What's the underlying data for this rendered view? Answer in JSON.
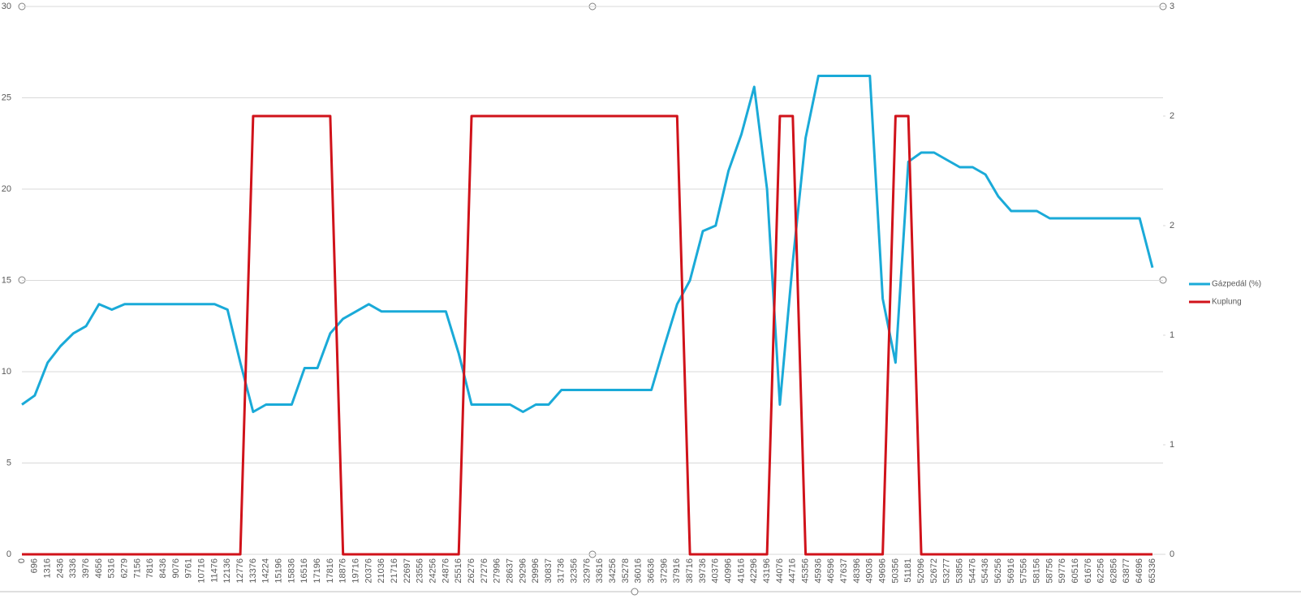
{
  "chart_data": {
    "type": "line",
    "categories": [
      "0",
      "696",
      "1316",
      "2436",
      "3336",
      "3976",
      "4656",
      "5316",
      "6279",
      "7156",
      "7816",
      "8436",
      "9076",
      "9761",
      "10716",
      "11476",
      "12136",
      "12776",
      "13376",
      "14224",
      "15196",
      "15836",
      "16516",
      "17196",
      "17816",
      "18876",
      "19716",
      "20376",
      "21036",
      "21716",
      "22697",
      "23556",
      "24256",
      "24876",
      "25516",
      "26276",
      "27276",
      "27996",
      "28637",
      "29296",
      "29996",
      "30837",
      "31736",
      "32356",
      "32976",
      "33616",
      "34256",
      "35278",
      "36016",
      "36636",
      "37296",
      "37916",
      "38716",
      "39736",
      "40376",
      "40996",
      "41616",
      "42296",
      "43196",
      "44076",
      "44716",
      "45356",
      "45936",
      "46596",
      "47637",
      "48396",
      "49036",
      "49696",
      "50356",
      "51181",
      "52096",
      "52672",
      "53277",
      "53856",
      "54476",
      "55436",
      "56256",
      "56916",
      "57556",
      "58156",
      "58756",
      "59776",
      "60516",
      "61676",
      "62256",
      "62856",
      "63877",
      "64696",
      "65336"
    ],
    "series": [
      {
        "name": "Gázpedál (%)",
        "color": "#1aaad8",
        "values": [
          8.2,
          8.7,
          10.5,
          11.4,
          12.1,
          12.5,
          13.7,
          13.4,
          13.7,
          13.7,
          13.7,
          13.7,
          13.7,
          13.7,
          13.7,
          13.7,
          13.4,
          10.5,
          7.8,
          8.2,
          8.2,
          8.2,
          10.2,
          10.2,
          12.1,
          12.9,
          13.3,
          13.7,
          13.3,
          13.3,
          13.3,
          13.3,
          13.3,
          13.3,
          11.0,
          8.2,
          8.2,
          8.2,
          8.2,
          7.8,
          8.2,
          8.2,
          9.0,
          9.0,
          9.0,
          9.0,
          9.0,
          9.0,
          9.0,
          9.0,
          11.4,
          13.7,
          15.0,
          17.7,
          18.0,
          21.0,
          23.0,
          25.6,
          20,
          8.2,
          16,
          22.8,
          26.2,
          26.2,
          26.2,
          26.2,
          26.2,
          14,
          10.5,
          21.5,
          22,
          22,
          21.6,
          21.2,
          21.2,
          20.8,
          19.6,
          18.8,
          18.8,
          18.8,
          18.4,
          18.4,
          18.4,
          18.4,
          18.4,
          18.4,
          18.4,
          18.4,
          15.7
        ]
      },
      {
        "name": "Kuplung",
        "color": "#d0121a",
        "axis": "y2",
        "values": [
          0,
          0,
          0,
          0,
          0,
          0,
          0,
          0,
          0,
          0,
          0,
          0,
          0,
          0,
          0,
          0,
          0,
          0,
          2.4,
          2.4,
          2.4,
          2.4,
          2.4,
          2.4,
          2.4,
          0,
          0,
          0,
          0,
          0,
          0,
          0,
          0,
          0,
          0,
          2.4,
          2.4,
          2.4,
          2.4,
          2.4,
          2.4,
          2.4,
          2.4,
          2.4,
          2.4,
          2.4,
          2.4,
          2.4,
          2.4,
          2.4,
          2.4,
          2.4,
          0,
          0,
          0,
          0,
          0,
          0,
          0,
          2.4,
          2.4,
          0,
          0,
          0,
          0,
          0,
          0,
          0,
          2.4,
          2.4,
          0,
          0,
          0,
          0,
          0,
          0,
          0,
          0,
          0,
          0,
          0,
          0,
          0,
          0,
          0,
          0,
          0,
          0,
          0
        ]
      }
    ],
    "ylim": [
      0,
      30
    ],
    "yticks": [
      0,
      5,
      10,
      15,
      20,
      25,
      30
    ],
    "y2lim": [
      0,
      3
    ],
    "y2ticks": [
      0,
      {
        "value": 0.6,
        "label": "1"
      },
      {
        "value": 1.2,
        "label": "1"
      },
      {
        "value": 1.8,
        "label": "2"
      },
      {
        "value": 2.4,
        "label": "2"
      },
      3
    ],
    "grid": true,
    "legend": "right"
  }
}
